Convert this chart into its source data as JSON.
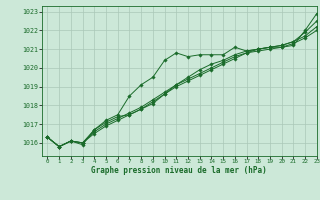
{
  "title": "Graphe pression niveau de la mer (hPa)",
  "background_color": "#cce8d8",
  "grid_color": "#aac8b8",
  "line_color": "#1a6b2a",
  "marker_color": "#1a6b2a",
  "xlim": [
    -0.5,
    23
  ],
  "ylim": [
    1015.3,
    1023.3
  ],
  "yticks": [
    1016,
    1017,
    1018,
    1019,
    1020,
    1021,
    1022,
    1023
  ],
  "xticks": [
    0,
    1,
    2,
    3,
    4,
    5,
    6,
    7,
    8,
    9,
    10,
    11,
    12,
    13,
    14,
    15,
    16,
    17,
    18,
    19,
    20,
    21,
    22,
    23
  ],
  "series": [
    {
      "x": [
        0,
        1,
        2,
        3,
        4,
        5,
        6,
        7,
        8,
        9,
        10,
        11,
        12,
        13,
        14,
        15,
        16,
        17,
        18,
        19,
        20,
        21,
        22,
        23
      ],
      "y": [
        1016.3,
        1015.8,
        1016.1,
        1015.9,
        1016.7,
        1017.2,
        1017.5,
        1018.5,
        1019.1,
        1019.5,
        1020.4,
        1020.8,
        1020.6,
        1020.7,
        1020.7,
        1020.7,
        1021.1,
        1020.9,
        1021.0,
        1021.1,
        1021.1,
        1021.2,
        1022.0,
        1022.9
      ]
    },
    {
      "x": [
        0,
        1,
        2,
        3,
        4,
        5,
        6,
        7,
        8,
        9,
        10,
        11,
        12,
        13,
        14,
        15,
        16,
        17,
        18,
        19,
        20,
        21,
        22,
        23
      ],
      "y": [
        1016.3,
        1015.8,
        1016.1,
        1016.0,
        1016.7,
        1017.1,
        1017.4,
        1017.5,
        1017.8,
        1018.1,
        1018.6,
        1019.1,
        1019.5,
        1019.9,
        1020.2,
        1020.4,
        1020.7,
        1020.9,
        1021.0,
        1021.1,
        1021.2,
        1021.4,
        1021.9,
        1022.5
      ]
    },
    {
      "x": [
        0,
        1,
        2,
        3,
        4,
        5,
        6,
        7,
        8,
        9,
        10,
        11,
        12,
        13,
        14,
        15,
        16,
        17,
        18,
        19,
        20,
        21,
        22,
        23
      ],
      "y": [
        1016.3,
        1015.8,
        1016.1,
        1016.0,
        1016.6,
        1017.0,
        1017.3,
        1017.6,
        1017.9,
        1018.3,
        1018.7,
        1019.1,
        1019.4,
        1019.7,
        1020.0,
        1020.3,
        1020.6,
        1020.8,
        1021.0,
        1021.1,
        1021.2,
        1021.4,
        1021.7,
        1022.2
      ]
    },
    {
      "x": [
        0,
        1,
        2,
        3,
        4,
        5,
        6,
        7,
        8,
        9,
        10,
        11,
        12,
        13,
        14,
        15,
        16,
        17,
        18,
        19,
        20,
        21,
        22,
        23
      ],
      "y": [
        1016.3,
        1015.8,
        1016.1,
        1016.0,
        1016.5,
        1016.9,
        1017.2,
        1017.5,
        1017.8,
        1018.2,
        1018.6,
        1019.0,
        1019.3,
        1019.6,
        1019.9,
        1020.2,
        1020.5,
        1020.8,
        1020.9,
        1021.0,
        1021.1,
        1021.3,
        1021.6,
        1022.0
      ]
    }
  ],
  "figsize": [
    3.2,
    2.0
  ],
  "dpi": 100
}
